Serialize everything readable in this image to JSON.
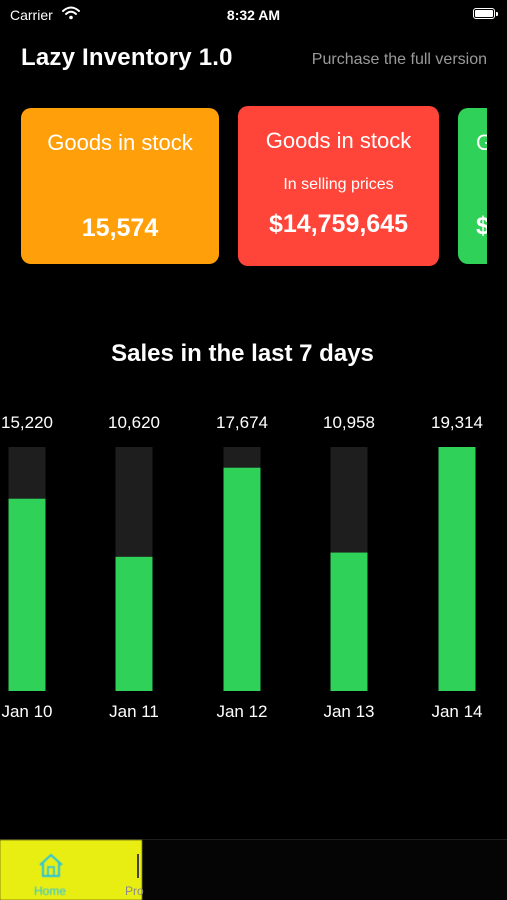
{
  "status_bar": {
    "carrier": "Carrier",
    "time": "8:32 AM"
  },
  "header": {
    "title": "Lazy Inventory 1.0",
    "purchase_link": "Purchase the full version"
  },
  "cards": [
    {
      "title": "Goods in stock",
      "subtitle": "",
      "value": "15,574",
      "color": "#ff9f0a"
    },
    {
      "title": "Goods in stock",
      "subtitle": "In selling prices",
      "value": "$14,759,645",
      "color": "#ff453a"
    },
    {
      "title": "G",
      "subtitle": "",
      "value": "$",
      "color": "#30d158"
    }
  ],
  "sales_section": {
    "title": "Sales in the last 7 days"
  },
  "chart_data": {
    "type": "bar",
    "categories": [
      "Jan 10",
      "Jan 11",
      "Jan 12",
      "Jan 13",
      "Jan 14"
    ],
    "values": [
      15220,
      10620,
      17674,
      10958,
      19314
    ],
    "value_labels": [
      "15,220",
      "10,620",
      "17,674",
      "10,958",
      "19,314"
    ],
    "ylim": [
      0,
      19314
    ],
    "bar_color": "#30d158",
    "track_color": "#1e1e1e"
  },
  "tab_bar": {
    "tabs": [
      {
        "label": "Home",
        "icon": "home-icon",
        "selected": true
      },
      {
        "label": "Pro",
        "icon": "products-icon",
        "selected": false
      }
    ],
    "highlight_color": "#e9ee12",
    "selected_label_color": "#22c3e6"
  }
}
